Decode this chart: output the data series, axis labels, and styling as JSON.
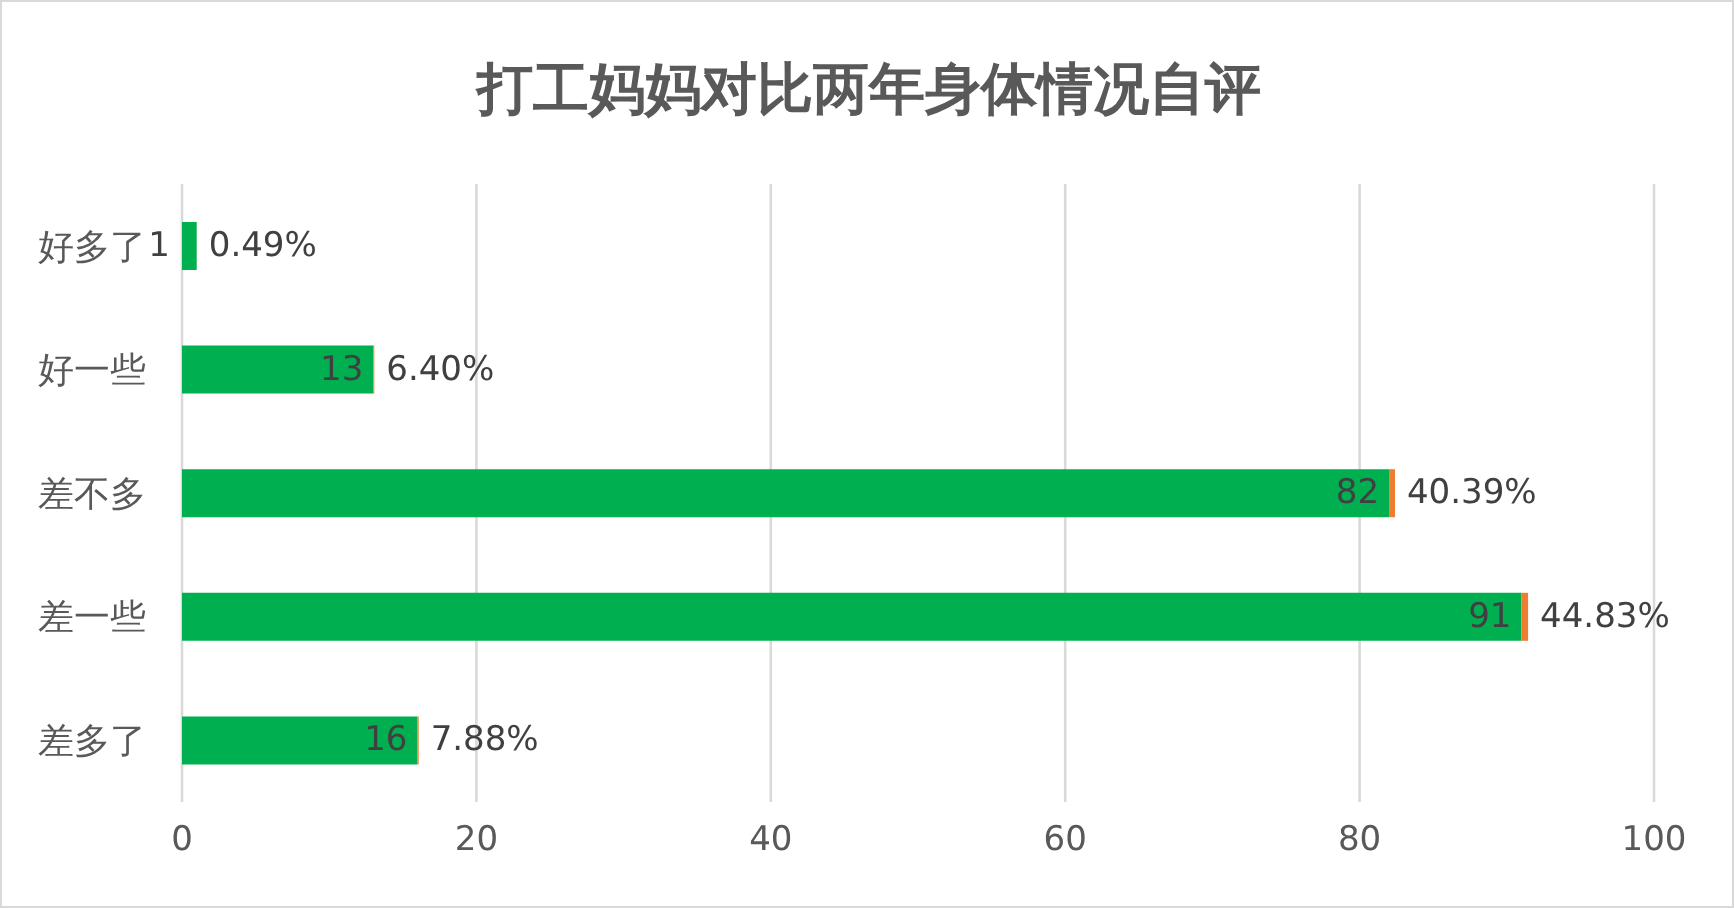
{
  "chart_data": {
    "type": "bar",
    "orientation": "horizontal",
    "stacked": true,
    "title": "打工妈妈对比两年身体情况自评",
    "categories": [
      "好多了",
      "好一些",
      "差不多",
      "差一些",
      "差多了"
    ],
    "series": [
      {
        "color": "#00b050",
        "values": [
          1,
          13,
          82,
          91,
          16
        ]
      },
      {
        "color": "#ed7d31",
        "values": [
          0.0049,
          0.064,
          0.4039,
          0.4483,
          0.0788
        ],
        "value_labels": [
          "0.49%",
          "6.40%",
          "40.39%",
          "44.83%",
          "7.88%"
        ]
      }
    ],
    "data_labels": true,
    "xlim": [
      0,
      100
    ],
    "xticks": [
      0,
      20,
      40,
      60,
      80,
      100
    ],
    "grid": "x"
  }
}
